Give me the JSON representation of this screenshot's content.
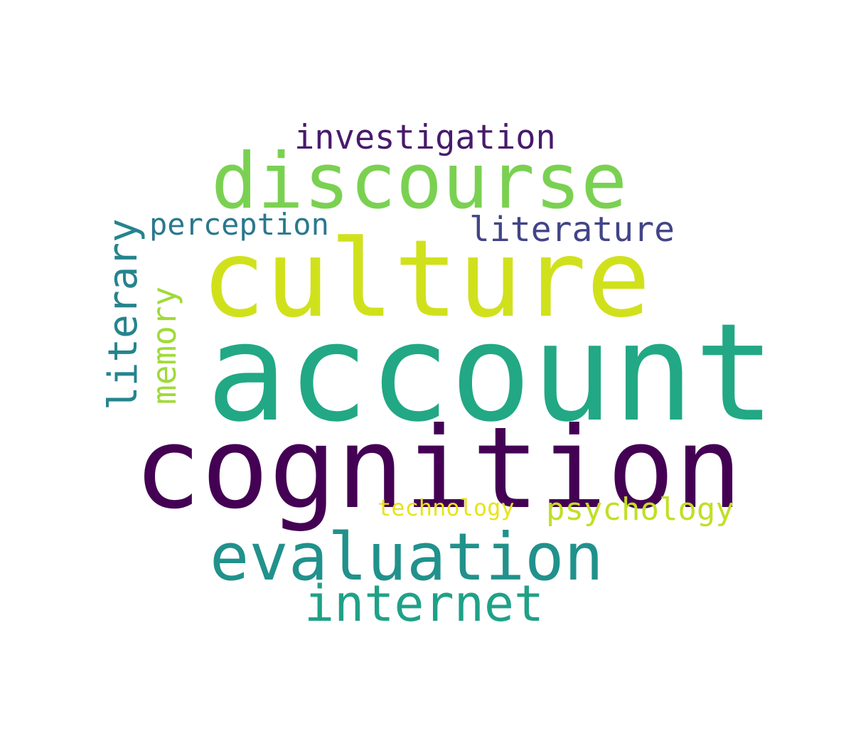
{
  "words": [
    {
      "text": "account",
      "color": "#22a884"
    },
    {
      "text": "cognition",
      "color": "#440154"
    },
    {
      "text": "culture",
      "color": "#d0e11c"
    },
    {
      "text": "discourse",
      "color": "#7ad151"
    },
    {
      "text": "evaluation",
      "color": "#21918c"
    },
    {
      "text": "internet",
      "color": "#1fa187"
    },
    {
      "text": "investigation",
      "color": "#481a6c"
    },
    {
      "text": "literature",
      "color": "#414487"
    },
    {
      "text": "perception",
      "color": "#2a788e"
    },
    {
      "text": "psychology",
      "color": "#c2df23"
    },
    {
      "text": "technology",
      "color": "#e7e419"
    },
    {
      "text": "literary",
      "color": "#25848e"
    },
    {
      "text": "memory",
      "color": "#a0da39"
    }
  ]
}
